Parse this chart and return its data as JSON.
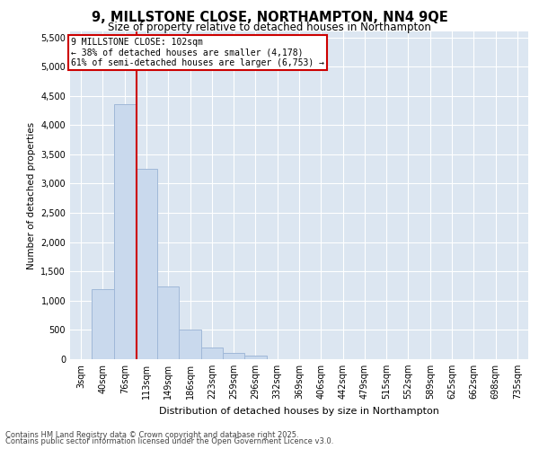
{
  "title1": "9, MILLSTONE CLOSE, NORTHAMPTON, NN4 9QE",
  "title2": "Size of property relative to detached houses in Northampton",
  "xlabel": "Distribution of detached houses by size in Northampton",
  "ylabel": "Number of detached properties",
  "categories": [
    "3sqm",
    "40sqm",
    "76sqm",
    "113sqm",
    "149sqm",
    "186sqm",
    "223sqm",
    "259sqm",
    "296sqm",
    "332sqm",
    "369sqm",
    "406sqm",
    "442sqm",
    "479sqm",
    "515sqm",
    "552sqm",
    "589sqm",
    "625sqm",
    "662sqm",
    "698sqm",
    "735sqm"
  ],
  "values": [
    0,
    1200,
    4350,
    3250,
    1250,
    500,
    200,
    100,
    60,
    0,
    0,
    0,
    0,
    0,
    0,
    0,
    0,
    0,
    0,
    0,
    0
  ],
  "bar_color": "#c9d9ed",
  "bar_edge_color": "#a0b8d8",
  "vline_x": 2.55,
  "vline_color": "#cc0000",
  "annotation_text": "9 MILLSTONE CLOSE: 102sqm\n← 38% of detached houses are smaller (4,178)\n61% of semi-detached houses are larger (6,753) →",
  "annotation_box_color": "#cc0000",
  "ylim": [
    0,
    5600
  ],
  "yticks": [
    0,
    500,
    1000,
    1500,
    2000,
    2500,
    3000,
    3500,
    4000,
    4500,
    5000,
    5500
  ],
  "background_color": "#dce6f1",
  "footer1": "Contains HM Land Registry data © Crown copyright and database right 2025.",
  "footer2": "Contains public sector information licensed under the Open Government Licence v3.0."
}
